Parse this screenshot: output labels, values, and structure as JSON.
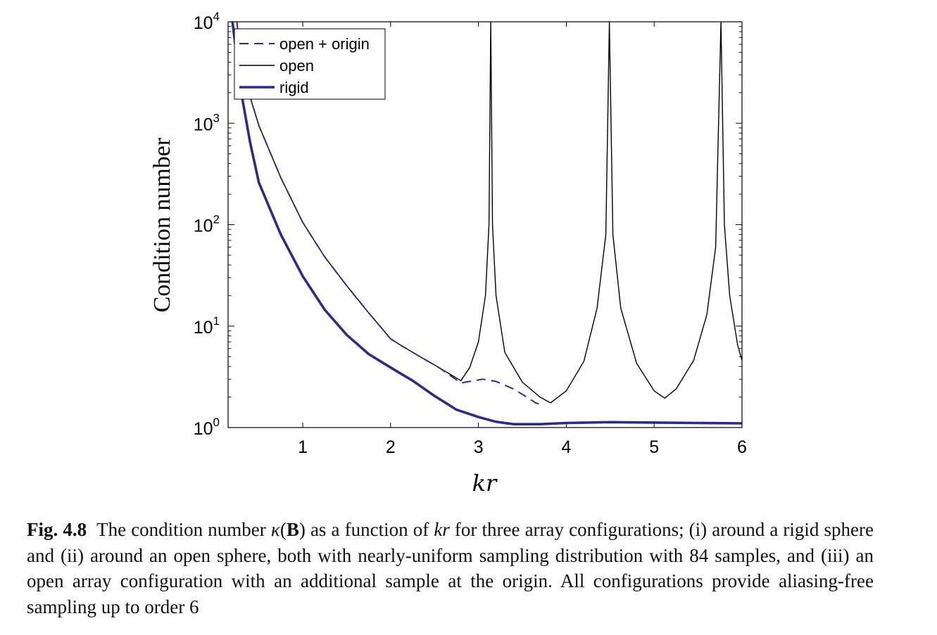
{
  "chart_data": {
    "type": "line",
    "title": "",
    "xlabel": "kr",
    "ylabel": "Condition number",
    "xlim": [
      0.15,
      6
    ],
    "ylim": [
      1,
      10000
    ],
    "yscale": "log",
    "grid": false,
    "legend_position": "top-left",
    "x_ticks": [
      {
        "value": 1,
        "label": "1"
      },
      {
        "value": 2,
        "label": "2"
      },
      {
        "value": 3,
        "label": "3"
      },
      {
        "value": 4,
        "label": "4"
      },
      {
        "value": 5,
        "label": "5"
      },
      {
        "value": 6,
        "label": "6"
      }
    ],
    "y_ticks": [
      {
        "value": 1,
        "base": "10",
        "exp": "0"
      },
      {
        "value": 10,
        "base": "10",
        "exp": "1"
      },
      {
        "value": 100,
        "base": "10",
        "exp": "2"
      },
      {
        "value": 1000,
        "base": "10",
        "exp": "3"
      },
      {
        "value": 10000,
        "base": "10",
        "exp": "4"
      }
    ],
    "series": [
      {
        "name": "open + origin",
        "style": "dashed",
        "color": "#2e2a8c",
        "points": [
          [
            0.25,
            10000
          ],
          [
            0.3,
            3500
          ],
          [
            0.5,
            950
          ],
          [
            0.75,
            290
          ],
          [
            1.0,
            105
          ],
          [
            1.25,
            48
          ],
          [
            1.5,
            25
          ],
          [
            1.75,
            13.5
          ],
          [
            2.0,
            7.5
          ],
          [
            2.1,
            6.6
          ],
          [
            2.3,
            5.2
          ],
          [
            2.55,
            3.9
          ],
          [
            2.8,
            2.75
          ],
          [
            2.9,
            2.85
          ],
          [
            3.05,
            3.0
          ],
          [
            3.2,
            2.85
          ],
          [
            3.4,
            2.4
          ],
          [
            3.55,
            2.0
          ],
          [
            3.65,
            1.75
          ],
          [
            3.75,
            1.65
          ]
        ]
      },
      {
        "name": "open",
        "style": "solid-thin",
        "color": "#000000",
        "points": [
          [
            0.25,
            10000
          ],
          [
            0.3,
            3500
          ],
          [
            0.5,
            950
          ],
          [
            0.75,
            290
          ],
          [
            1.0,
            105
          ],
          [
            1.25,
            48
          ],
          [
            1.5,
            25
          ],
          [
            1.75,
            13.5
          ],
          [
            2.0,
            7.5
          ],
          [
            2.1,
            6.6
          ],
          [
            2.3,
            5.2
          ],
          [
            2.55,
            3.9
          ],
          [
            2.8,
            2.9
          ],
          [
            2.9,
            3.9
          ],
          [
            3.0,
            7.0
          ],
          [
            3.08,
            20
          ],
          [
            3.12,
            100
          ],
          [
            3.14,
            10000
          ],
          [
            3.16,
            100
          ],
          [
            3.2,
            20
          ],
          [
            3.3,
            5.5
          ],
          [
            3.5,
            2.8
          ],
          [
            3.7,
            2.0
          ],
          [
            3.82,
            1.75
          ],
          [
            4.0,
            2.3
          ],
          [
            4.2,
            4.5
          ],
          [
            4.35,
            15
          ],
          [
            4.45,
            80
          ],
          [
            4.49,
            10000
          ],
          [
            4.53,
            80
          ],
          [
            4.62,
            15
          ],
          [
            4.8,
            4.3
          ],
          [
            5.0,
            2.3
          ],
          [
            5.12,
            1.95
          ],
          [
            5.25,
            2.4
          ],
          [
            5.45,
            4.6
          ],
          [
            5.6,
            13
          ],
          [
            5.7,
            60
          ],
          [
            5.76,
            10000
          ],
          [
            5.8,
            100
          ],
          [
            5.86,
            20
          ],
          [
            5.95,
            6.5
          ],
          [
            6.0,
            4.6
          ]
        ]
      },
      {
        "name": "rigid",
        "style": "solid-thick",
        "color": "#2e2a8c",
        "points": [
          [
            0.2,
            10000
          ],
          [
            0.3,
            2000
          ],
          [
            0.4,
            650
          ],
          [
            0.5,
            260
          ],
          [
            0.75,
            80
          ],
          [
            1.0,
            31
          ],
          [
            1.25,
            14.5
          ],
          [
            1.5,
            8.2
          ],
          [
            1.75,
            5.3
          ],
          [
            2.0,
            3.9
          ],
          [
            2.25,
            2.9
          ],
          [
            2.5,
            2.05
          ],
          [
            2.75,
            1.5
          ],
          [
            3.0,
            1.27
          ],
          [
            3.2,
            1.14
          ],
          [
            3.4,
            1.08
          ],
          [
            3.7,
            1.08
          ],
          [
            4.0,
            1.11
          ],
          [
            4.5,
            1.13
          ],
          [
            5.0,
            1.12
          ],
          [
            5.5,
            1.11
          ],
          [
            6.0,
            1.1
          ]
        ]
      }
    ]
  },
  "caption": {
    "label": "Fig. 4.8",
    "p1": "The condition number ",
    "kappa": "κ",
    "paren_open": "(",
    "bold_b": "B",
    "paren_close": ")",
    "p2": " as a function of ",
    "kr": "kr",
    "p3": " for three array configurations; (i) around a rigid sphere and (ii) around an open sphere, both with nearly-uniform sampling distribution with 84 samples, and (iii) an open array configuration with an additional sample at the origin. All configurations provide aliasing-free sampling up to order 6"
  }
}
